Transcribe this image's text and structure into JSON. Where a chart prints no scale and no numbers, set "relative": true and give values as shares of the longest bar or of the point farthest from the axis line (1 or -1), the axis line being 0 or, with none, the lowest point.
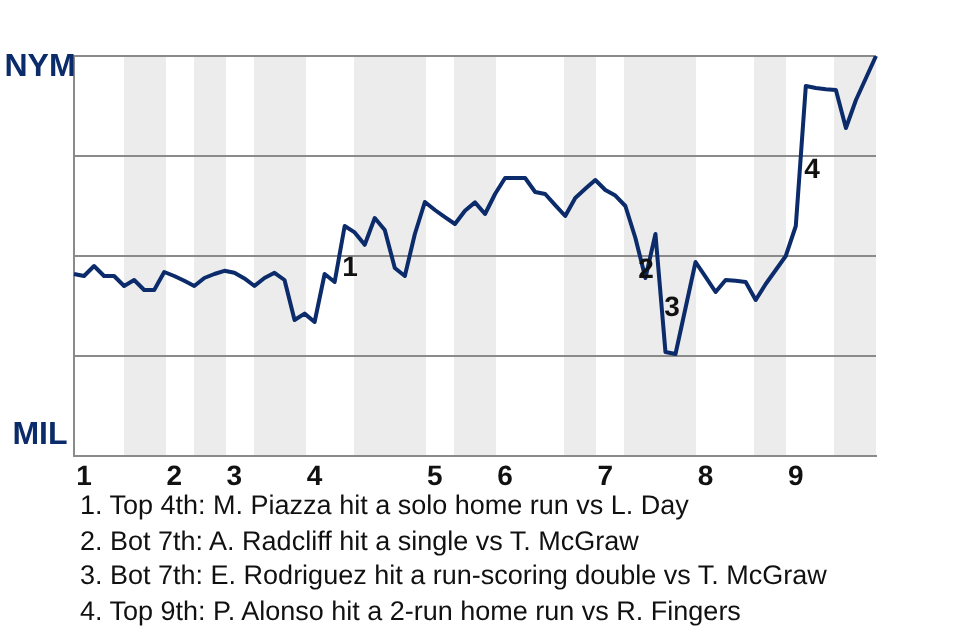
{
  "chart_data": {
    "type": "line",
    "relative": true,
    "grid": "y",
    "legend": false,
    "marker": "none",
    "line_style": "solid",
    "categories": [
      null,
      "1",
      null,
      null,
      null,
      null,
      null,
      null,
      null,
      null,
      "2",
      null,
      null,
      null,
      null,
      null,
      "3",
      null,
      null,
      null,
      null,
      null,
      null,
      null,
      "4",
      null,
      null,
      null,
      null,
      null,
      null,
      null,
      null,
      null,
      null,
      null,
      "5",
      null,
      null,
      null,
      null,
      null,
      null,
      "6",
      null,
      null,
      null,
      null,
      null,
      null,
      null,
      null,
      null,
      "7",
      null,
      null,
      null,
      null,
      null,
      null,
      null,
      null,
      null,
      "8",
      null,
      null,
      null,
      null,
      null,
      null,
      null,
      null,
      "9",
      null,
      null,
      null,
      null,
      null,
      null,
      null,
      null
    ],
    "series": [
      {
        "color": "#0b2b6b",
        "values": [
          0.455,
          0.45,
          0.475,
          0.45,
          0.45,
          0.425,
          0.44,
          0.415,
          0.415,
          0.46,
          0.45,
          0.438,
          0.425,
          0.445,
          0.455,
          0.463,
          0.458,
          0.444,
          0.425,
          0.445,
          0.458,
          0.44,
          0.34,
          0.356,
          0.335,
          0.455,
          0.435,
          0.575,
          0.559,
          0.528,
          0.595,
          0.565,
          0.47,
          0.45,
          0.555,
          0.635,
          0.615,
          0.597,
          0.58,
          0.613,
          0.634,
          0.605,
          0.655,
          0.695,
          0.695,
          0.695,
          0.66,
          0.655,
          0.627,
          0.6,
          0.645,
          0.668,
          0.69,
          0.665,
          0.651,
          0.625,
          0.545,
          0.445,
          0.555,
          0.26,
          0.255,
          0.37,
          0.485,
          0.448,
          0.41,
          0.44,
          0.438,
          0.435,
          0.39,
          0.43,
          0.465,
          0.5,
          0.575,
          0.925,
          0.92,
          0.917,
          0.915,
          0.82,
          0.89,
          0.945,
          1
        ]
      }
    ],
    "annotations": [
      "NYM",
      "MIL",
      "1",
      "2",
      "3",
      "4",
      "1. Top 4th: M. Piazza hit a solo home run vs L. Day",
      "2. Bot 7th: A. Radcliff hit a single vs T. McGraw",
      "3. Bot 7th: E. Rodriguez hit a run-scoring double vs T. McGraw",
      "4. Top 9th: P. Alonso hit a 2-run home run vs R. Fingers"
    ]
  }
}
